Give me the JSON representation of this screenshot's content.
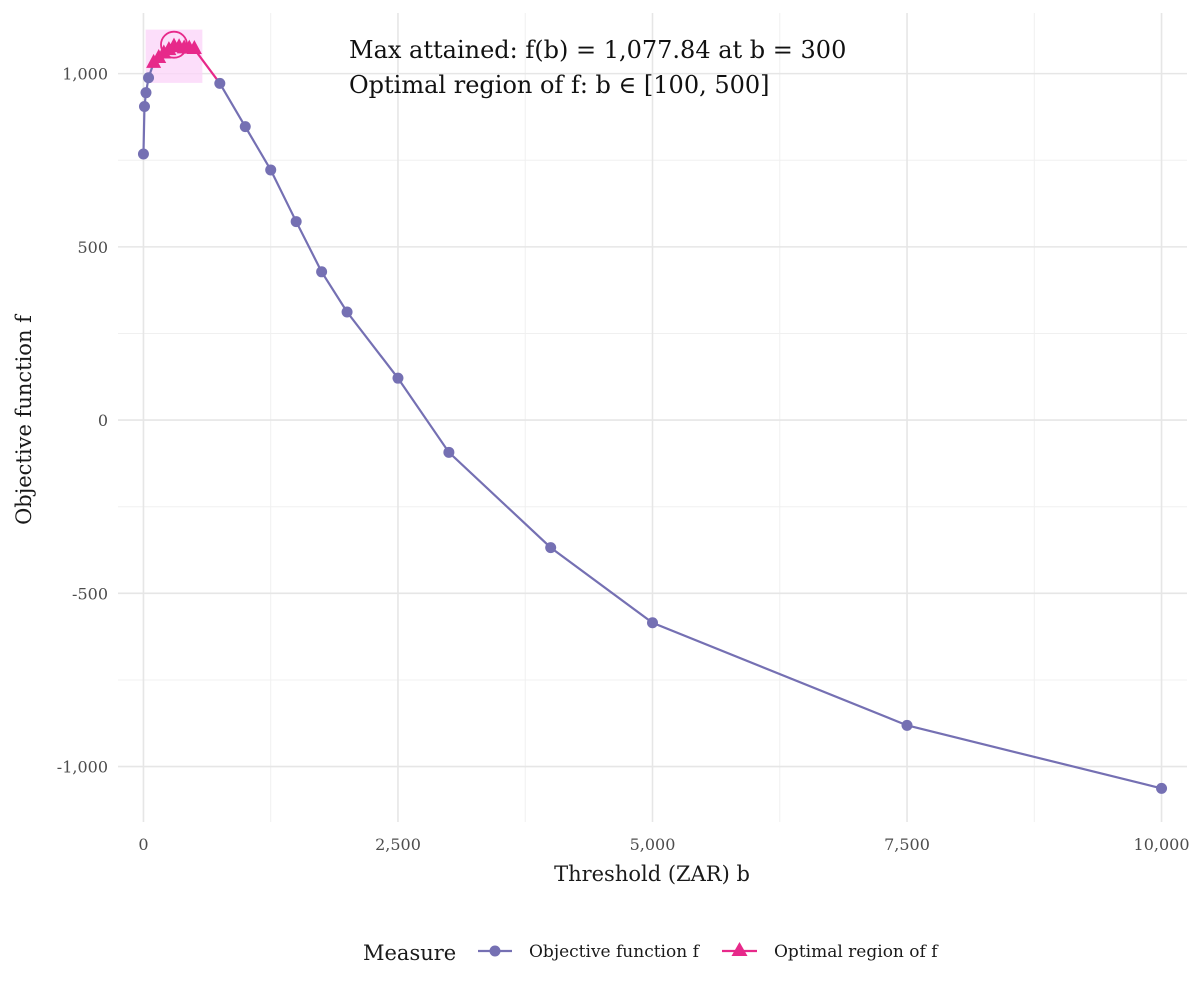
{
  "chart_data": {
    "type": "line",
    "xlabel": "Threshold (ZAR) b",
    "ylabel": "Objective function f",
    "xlim": [
      -250,
      10250
    ],
    "ylim": [
      -1160,
      1175
    ],
    "x_ticks": [
      0,
      2500,
      5000,
      7500,
      10000
    ],
    "x_tick_labels": [
      "0",
      "2,500",
      "5,000",
      "7,500",
      "10,000"
    ],
    "y_ticks": [
      -1000,
      -500,
      0,
      500,
      1000
    ],
    "y_tick_labels": [
      "-1,000",
      "-500",
      "0",
      "500",
      "1,000"
    ],
    "grid": true,
    "legend_placement": "bottom",
    "legend_title": "Measure",
    "annotation_line1": "Max attained: f(b) = 1,077.84 at b = 300",
    "annotation_line2": "Optimal region of f: b ∈  [100, 500]",
    "optimal_region_x": [
      100,
      500
    ],
    "max_point": {
      "x": 300,
      "y": 1077.84
    },
    "series": [
      {
        "name": "Objective function f",
        "color": "#7570b3",
        "marker": "circle",
        "x": [
          0,
          10,
          25,
          50,
          750,
          1000,
          1250,
          1500,
          1750,
          2000,
          2500,
          3000,
          4000,
          5000,
          7500,
          10000
        ],
        "y": [
          768,
          905,
          945,
          988,
          972,
          847,
          722,
          573,
          428,
          312,
          121,
          -93,
          -368,
          -585,
          -881,
          -1063
        ]
      },
      {
        "name": "Optimal region of f",
        "color": "#e7298a",
        "marker": "triangle",
        "x": [
          100,
          150,
          200,
          250,
          300,
          350,
          400,
          450,
          500
        ],
        "y": [
          1031,
          1045,
          1058,
          1068,
          1078,
          1076,
          1073,
          1072,
          1071
        ]
      }
    ]
  }
}
